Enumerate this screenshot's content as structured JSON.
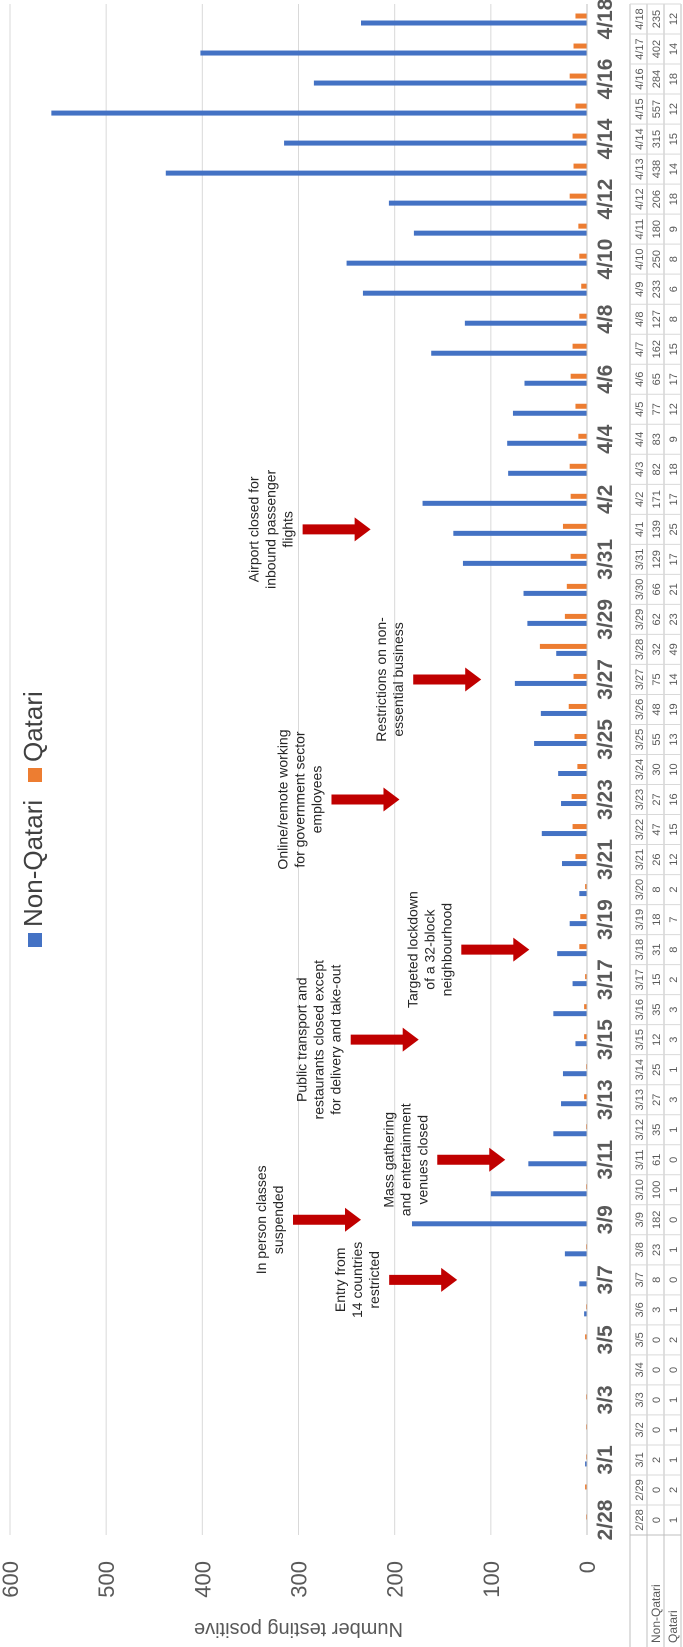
{
  "chart_data": {
    "type": "bar",
    "ylabel": "Number testing positive",
    "ylim": [
      0,
      600
    ],
    "yticks": [
      0,
      100,
      200,
      300,
      400,
      500,
      600
    ],
    "grid": true,
    "legend_position": "top-center",
    "dates": [
      "2/28",
      "2/29",
      "3/1",
      "3/2",
      "3/3",
      "3/4",
      "3/5",
      "3/6",
      "3/7",
      "3/8",
      "3/9",
      "3/10",
      "3/11",
      "3/12",
      "3/13",
      "3/14",
      "3/15",
      "3/16",
      "3/17",
      "3/18",
      "3/19",
      "3/20",
      "3/21",
      "3/22",
      "3/23",
      "3/24",
      "3/25",
      "3/26",
      "3/27",
      "3/28",
      "3/29",
      "3/30",
      "3/31",
      "4/1",
      "4/2",
      "4/3",
      "4/4",
      "4/5",
      "4/6",
      "4/7",
      "4/8",
      "4/9",
      "4/10",
      "4/11",
      "4/12",
      "4/13",
      "4/14",
      "4/15",
      "4/16",
      "4/17",
      "4/18"
    ],
    "axis_labels": [
      "2/28",
      "3/1",
      "3/3",
      "3/5",
      "3/7",
      "3/9",
      "3/11",
      "3/13",
      "3/15",
      "3/17",
      "3/19",
      "3/21",
      "3/23",
      "3/25",
      "3/27",
      "3/29",
      "3/31",
      "4/2",
      "4/4",
      "4/6",
      "4/8",
      "4/10",
      "4/12",
      "4/14",
      "4/16",
      "4/18"
    ],
    "table_header_cells": [
      "2/28",
      "2/29",
      "3/1",
      "3/2",
      "3/3",
      "3/4",
      "3/5",
      "3/6",
      "3/7",
      "3/8",
      "3/9",
      "3/10",
      "3/11",
      "3/12",
      "3/13",
      "3/14",
      "3/15",
      "3/16",
      "3/17",
      "3/18",
      "3/19",
      "3/20",
      "3/21",
      "3/22",
      "3/23",
      "3/24",
      "3/25",
      "3/26",
      "3/27",
      "3/28",
      "3/29",
      "3/30",
      "3/31",
      "4/1",
      "4/2",
      "4/3",
      "4/4",
      "4/5",
      "4/6",
      "4/7",
      "4/8",
      "4/9",
      "4/10",
      "4/11",
      "4/12",
      "4/13",
      "4/14",
      "4/15",
      "4/16",
      "4/17",
      "4/18"
    ],
    "series": [
      {
        "name": "Non-Qatari",
        "color": "#4472C4",
        "values": [
          0,
          0,
          2,
          0,
          0,
          0,
          0,
          3,
          8,
          23,
          182,
          100,
          61,
          35,
          27,
          25,
          12,
          35,
          15,
          31,
          18,
          8,
          26,
          47,
          27,
          30,
          55,
          48,
          75,
          32,
          62,
          66,
          129,
          139,
          171,
          82,
          83,
          77,
          65,
          162,
          127,
          233,
          250,
          180,
          206,
          438,
          315,
          557,
          284,
          402,
          235
        ]
      },
      {
        "name": "Qatari",
        "color": "#ED7D31",
        "values": [
          1,
          2,
          1,
          1,
          1,
          0,
          2,
          1,
          0,
          1,
          0,
          1,
          0,
          1,
          3,
          1,
          3,
          3,
          2,
          8,
          7,
          2,
          12,
          15,
          16,
          10,
          13,
          19,
          14,
          49,
          23,
          21,
          17,
          25,
          17,
          18,
          9,
          12,
          17,
          15,
          8,
          6,
          8,
          9,
          18,
          14,
          15,
          12,
          18,
          14,
          12
        ]
      }
    ],
    "annotations": [
      {
        "id": "entry",
        "text": [
          "Entry from",
          "14 countries",
          "restricted"
        ],
        "arrow_date_index": 8,
        "arrow_value": "135"
      },
      {
        "id": "classes",
        "text": [
          "In person classes",
          "suspended"
        ],
        "arrow_date_index": 10,
        "arrow_value": "235"
      },
      {
        "id": "gathering",
        "text": [
          "Mass gathering",
          "and entertainment",
          "venues closed"
        ],
        "arrow_date_index": 12,
        "arrow_value": "85"
      },
      {
        "id": "transport",
        "text": [
          "Public transport and",
          "restaurants closed except",
          "for delivery and take-out"
        ],
        "arrow_date_index": 16,
        "arrow_value": "175"
      },
      {
        "id": "lockdown",
        "text": [
          "Targeted lockdown",
          "of a 32-block",
          "neighbourhood"
        ],
        "arrow_date_index": 19,
        "arrow_value": "60"
      },
      {
        "id": "remote",
        "text": [
          "Online/remote working",
          "for government sector",
          "employees"
        ],
        "arrow_date_index": 24,
        "arrow_value": "195"
      },
      {
        "id": "business",
        "text": [
          "Restrictions on non-",
          "essential business"
        ],
        "arrow_date_index": 28,
        "arrow_value": "110"
      },
      {
        "id": "airport",
        "text": [
          "Airport closed for",
          "inbound passenger",
          "flights"
        ],
        "arrow_date_index": 33,
        "arrow_value": "225"
      }
    ]
  }
}
